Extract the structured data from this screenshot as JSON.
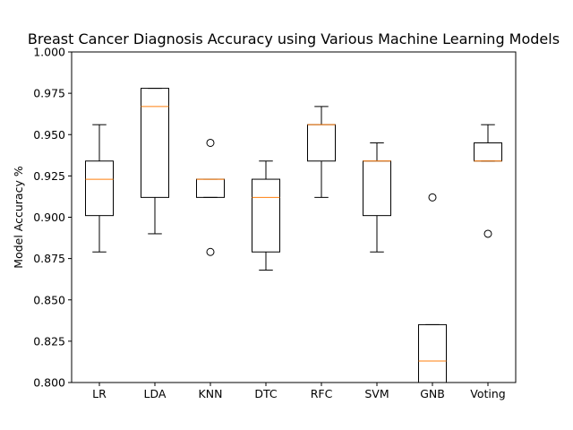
{
  "chart_data": {
    "type": "box",
    "title": "Breast Cancer Diagnosis Accuracy using Various Machine Learning Models",
    "xlabel": "",
    "ylabel": "Model Accuracy %",
    "ylim": [
      0.8,
      1.0
    ],
    "yticks": [
      "0.800",
      "0.825",
      "0.850",
      "0.875",
      "0.900",
      "0.925",
      "0.950",
      "0.975",
      "1.000"
    ],
    "categories": [
      "LR",
      "LDA",
      "KNN",
      "DTC",
      "RFC",
      "SVM",
      "GNB",
      "Voting"
    ],
    "boxes": [
      {
        "name": "LR",
        "whisker_low": 0.879,
        "q1": 0.901,
        "median": 0.923,
        "q3": 0.934,
        "whisker_high": 0.956,
        "outliers": []
      },
      {
        "name": "LDA",
        "whisker_low": 0.89,
        "q1": 0.912,
        "median": 0.967,
        "q3": 0.978,
        "whisker_high": 0.978,
        "outliers": []
      },
      {
        "name": "KNN",
        "whisker_low": 0.912,
        "q1": 0.912,
        "median": 0.923,
        "q3": 0.923,
        "whisker_high": 0.923,
        "outliers": [
          0.945,
          0.879
        ]
      },
      {
        "name": "DTC",
        "whisker_low": 0.868,
        "q1": 0.879,
        "median": 0.912,
        "q3": 0.923,
        "whisker_high": 0.934,
        "outliers": []
      },
      {
        "name": "RFC",
        "whisker_low": 0.912,
        "q1": 0.934,
        "median": 0.956,
        "q3": 0.956,
        "whisker_high": 0.967,
        "outliers": []
      },
      {
        "name": "SVM",
        "whisker_low": 0.879,
        "q1": 0.901,
        "median": 0.934,
        "q3": 0.934,
        "whisker_high": 0.945,
        "outliers": []
      },
      {
        "name": "GNB",
        "whisker_low": 0.79,
        "q1": 0.79,
        "median": 0.813,
        "q3": 0.835,
        "whisker_high": 0.835,
        "outliers": [
          0.912
        ]
      },
      {
        "name": "Voting",
        "whisker_low": 0.934,
        "q1": 0.934,
        "median": 0.934,
        "q3": 0.945,
        "whisker_high": 0.956,
        "outliers": [
          0.89
        ]
      }
    ],
    "grid": false,
    "colors": {
      "box": "#000000",
      "median": "#ff7f0e"
    }
  }
}
